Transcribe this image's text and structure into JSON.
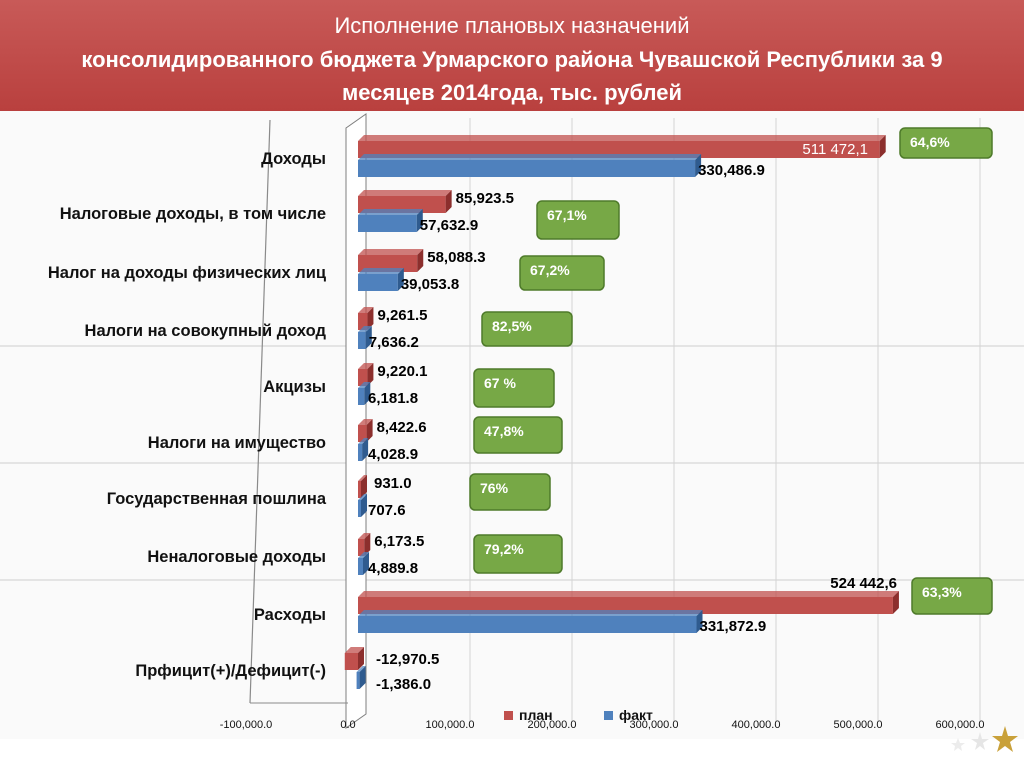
{
  "title": {
    "line1": "Исполнение плановых назначений",
    "line2": "консолидированного бюджета Урмарского района Чувашской Республики за 9",
    "line3": "месяцев 2014года, тыс. рублей"
  },
  "colors": {
    "plan": "#c0504d",
    "fact": "#4f81bd",
    "badge_fill": "#77a846",
    "badge_border": "#4e7a2a"
  },
  "chart_data": {
    "type": "bar",
    "orientation": "horizontal",
    "categories": [
      "Доходы",
      "Налоговые доходы, в том числе",
      "Налог на доходы физических лиц",
      "Налоги на совокупный доход",
      "Акцизы",
      "Налоги на имущество",
      "Государственная пошлина",
      "Неналоговые доходы",
      "Расходы",
      "Прфицит(+)/Дефицит(-)"
    ],
    "series": [
      {
        "name": "план",
        "values": [
          511472.1,
          85923.5,
          58088.3,
          9261.5,
          9220.1,
          8422.6,
          931.0,
          6173.5,
          524442.6,
          -12970.5
        ],
        "labels": [
          "511 472,1",
          "85,923.5",
          "58,088.3",
          "9,261.5",
          "9,220.1",
          "8,422.6",
          "931.0",
          "6,173.5",
          "524 442,6",
          "-12,970.5"
        ]
      },
      {
        "name": "факт",
        "values": [
          330486.9,
          57632.9,
          39053.8,
          7636.2,
          6181.8,
          4028.9,
          707.6,
          4889.8,
          331872.9,
          -1386.0
        ],
        "labels": [
          "330,486.9",
          "57,632.9",
          "39,053.8",
          "7,636.2",
          "6,181.8",
          "4,028.9",
          "707.6",
          "4,889.8",
          "331,872.9",
          "-1,386.0"
        ]
      }
    ],
    "percent_badges": [
      "64,6%",
      "67,1%",
      "67,2%",
      "82,5%",
      "67 %",
      "47,8%",
      "76%",
      "79,2%",
      "63,3%",
      ""
    ],
    "x_ticks": [
      "-100,000.0",
      "0.0",
      "100,000.0",
      "200,000.0",
      "300,000.0",
      "400,000.0",
      "500,000.0",
      "600,000.0"
    ],
    "x_tick_values": [
      -100000,
      0,
      100000,
      200000,
      300000,
      400000,
      500000,
      600000
    ],
    "xlim": [
      -100000,
      600000
    ],
    "legend": [
      "план",
      "факт"
    ],
    "legend_position": "bottom",
    "grid": true
  }
}
